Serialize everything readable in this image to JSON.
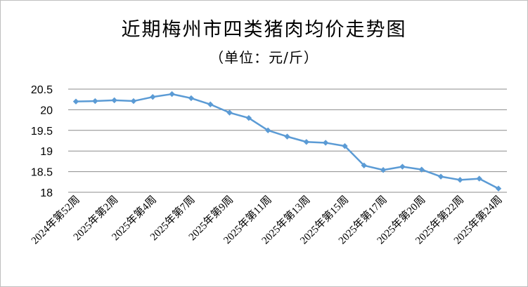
{
  "chart_data": {
    "type": "line",
    "title": "近期梅州市四类猪肉均价走势图",
    "subtitle": "（单位：元/斤）",
    "xlabel": "",
    "ylabel": "",
    "ylim": [
      18,
      20.5
    ],
    "yticks": [
      "20.5",
      "20",
      "19.5",
      "19",
      "18.5",
      "18"
    ],
    "grid": true,
    "legend": "none",
    "line_color": "#5b9bd5",
    "x_tick_labels": [
      "2024年第52周",
      "2025年第2周",
      "2025年第4周",
      "2025年第7周",
      "2025年第9周",
      "2025年第11周",
      "2025年第13周",
      "2025年第15周",
      "2025年第17周",
      "2025年第20周",
      "2025年第22周",
      "2025年第24周"
    ],
    "x_tick_point_index": [
      0,
      2,
      4,
      6,
      8,
      10,
      12,
      14,
      16,
      18,
      20,
      22
    ],
    "series": [
      {
        "values": [
          20.2,
          20.21,
          20.23,
          20.21,
          20.31,
          20.38,
          20.28,
          20.13,
          19.93,
          19.8,
          19.5,
          19.35,
          19.22,
          19.2,
          19.12,
          18.65,
          18.54,
          18.62,
          18.55,
          18.38,
          18.3,
          18.33,
          18.09
        ]
      }
    ]
  }
}
